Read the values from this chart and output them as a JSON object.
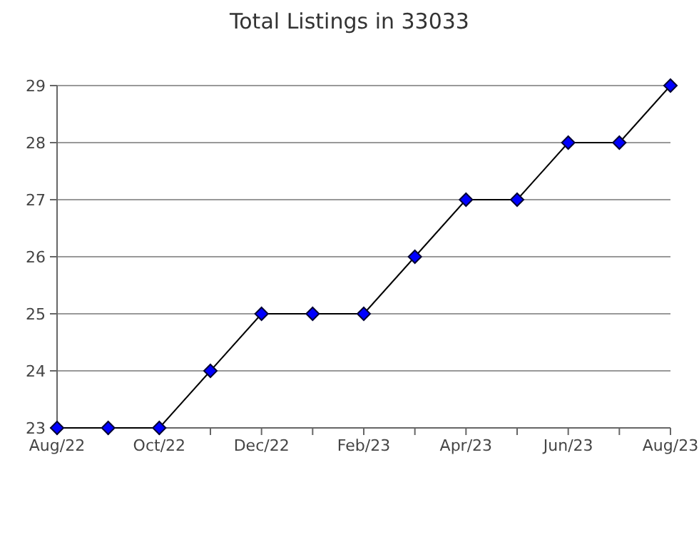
{
  "chart_data": {
    "type": "line",
    "title": "Total Listings in 33033",
    "categories": [
      "Aug/22",
      null,
      "Oct/22",
      null,
      "Dec/22",
      null,
      "Feb/23",
      null,
      "Apr/23",
      null,
      "Jun/23",
      null,
      "Aug/23"
    ],
    "series": [
      {
        "color": "#0000ff",
        "values": [
          23,
          23,
          23,
          24,
          25,
          25,
          25,
          26,
          27,
          27,
          28,
          28,
          29
        ]
      }
    ],
    "ylim": [
      23,
      29
    ],
    "yticks": [
      23,
      24,
      25,
      26,
      27,
      28,
      29
    ],
    "grid": "y",
    "marker": "diamond",
    "line_style": "solid"
  }
}
